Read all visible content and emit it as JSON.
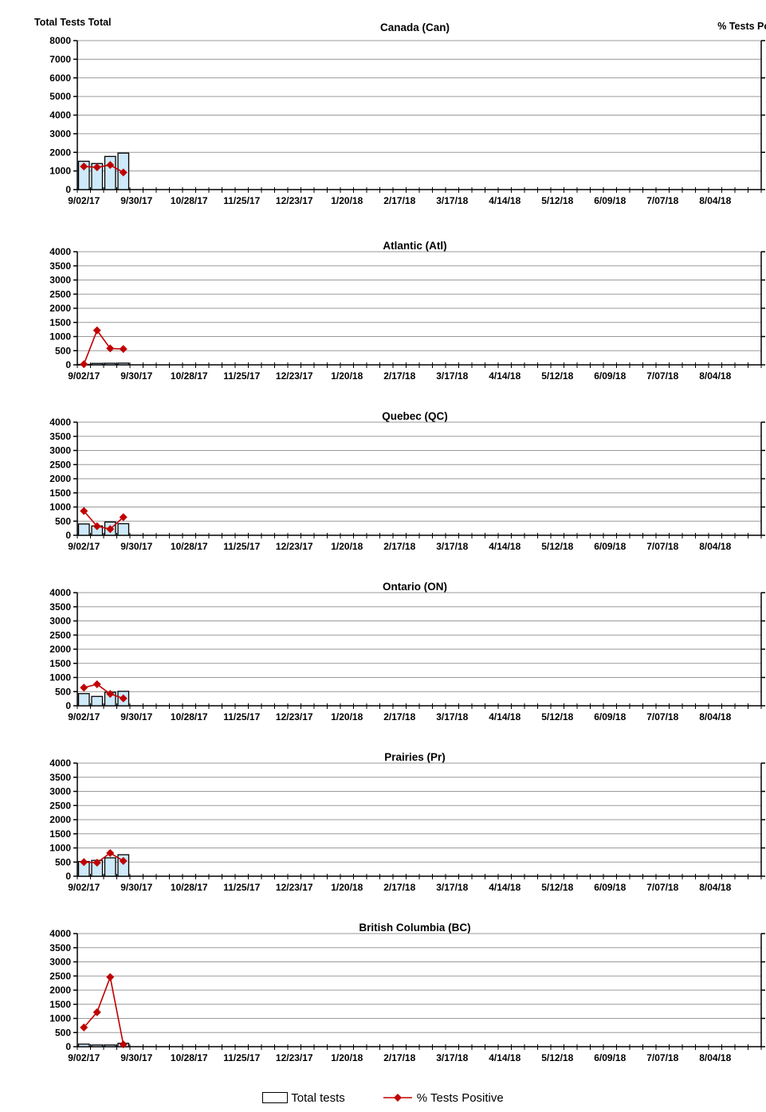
{
  "header": {
    "left_axis_label": "Total Tests Total",
    "right_axis_label": "% Tests Positive"
  },
  "legend": {
    "items": [
      {
        "label": "Total tests",
        "swatch": "bar-swatch",
        "color": "#CDE9FA"
      },
      {
        "label": "% Tests Positive",
        "swatch": "line-diamond-swatch",
        "color": "#C00000"
      }
    ]
  },
  "colors": {
    "bar_fill": "#CDE9FA",
    "bar_border": "#000000",
    "line": "#C00000",
    "grid": "#9A9A9A",
    "axis": "#000000",
    "text": "#000000",
    "background": "#FFFFFF"
  },
  "x_axis": {
    "tick_labels": [
      "9/02/17",
      "9/30/17",
      "10/28/17",
      "11/25/17",
      "12/23/17",
      "1/20/18",
      "2/17/18",
      "3/17/18",
      "4/14/18",
      "5/12/18",
      "6/09/18",
      "7/07/18",
      "8/04/18"
    ],
    "weeks_total": 52,
    "label_interval_weeks": 4
  },
  "chart_data": [
    {
      "type": "bar",
      "title": "Canada (Can)",
      "left_axis": {
        "min": 0,
        "max": 8000,
        "tick_step": 1000
      },
      "right_axis": {
        "min": 0,
        "max": 20,
        "tick_step": 5
      },
      "x": [
        "9/02/17",
        "9/09/17",
        "9/16/17",
        "9/23/17"
      ],
      "series": [
        {
          "name": "Total tests",
          "type": "bar",
          "axis": "left",
          "values": [
            1520,
            1400,
            1780,
            1960
          ]
        },
        {
          "name": "% Tests Positive",
          "type": "line",
          "axis": "right",
          "values": [
            3.1,
            3.0,
            3.3,
            2.3
          ]
        }
      ]
    },
    {
      "type": "bar",
      "title": "Atlantic (Atl)",
      "left_axis": {
        "min": 0,
        "max": 4000,
        "tick_step": 500
      },
      "right_axis": {
        "min": 0,
        "max": 20,
        "tick_step": 5
      },
      "x": [
        "9/02/17",
        "9/09/17",
        "9/16/17",
        "9/23/17"
      ],
      "series": [
        {
          "name": "Total tests",
          "type": "bar",
          "axis": "left",
          "values": [
            15,
            50,
            55,
            60
          ]
        },
        {
          "name": "% Tests Positive",
          "type": "line",
          "axis": "right",
          "values": [
            0.1,
            6.1,
            2.9,
            2.8
          ]
        }
      ]
    },
    {
      "type": "bar",
      "title": "Quebec (QC)",
      "left_axis": {
        "min": 0,
        "max": 4000,
        "tick_step": 500
      },
      "right_axis": {
        "min": 0,
        "max": 20,
        "tick_step": 5
      },
      "x": [
        "9/02/17",
        "9/09/17",
        "9/16/17",
        "9/23/17"
      ],
      "series": [
        {
          "name": "Total tests",
          "type": "bar",
          "axis": "left",
          "values": [
            400,
            330,
            470,
            410
          ]
        },
        {
          "name": "% Tests Positive",
          "type": "line",
          "axis": "right",
          "values": [
            4.3,
            1.6,
            1.1,
            3.2
          ]
        }
      ]
    },
    {
      "type": "bar",
      "title": "Ontario (ON)",
      "left_axis": {
        "min": 0,
        "max": 4000,
        "tick_step": 500
      },
      "right_axis": {
        "min": 0,
        "max": 20,
        "tick_step": 5
      },
      "x": [
        "9/02/17",
        "9/09/17",
        "9/16/17",
        "9/23/17"
      ],
      "series": [
        {
          "name": "Total tests",
          "type": "bar",
          "axis": "left",
          "values": [
            430,
            330,
            480,
            510
          ]
        },
        {
          "name": "% Tests Positive",
          "type": "line",
          "axis": "right",
          "values": [
            3.2,
            3.8,
            2.1,
            1.3
          ]
        }
      ]
    },
    {
      "type": "bar",
      "title": "Prairies (Pr)",
      "left_axis": {
        "min": 0,
        "max": 4000,
        "tick_step": 500
      },
      "right_axis": {
        "min": 0,
        "max": 20,
        "tick_step": 5
      },
      "x": [
        "9/02/17",
        "9/09/17",
        "9/16/17",
        "9/23/17"
      ],
      "series": [
        {
          "name": "Total tests",
          "type": "bar",
          "axis": "left",
          "values": [
            520,
            560,
            650,
            760
          ]
        },
        {
          "name": "% Tests Positive",
          "type": "line",
          "axis": "right",
          "values": [
            2.5,
            2.4,
            4.1,
            2.7
          ]
        }
      ]
    },
    {
      "type": "bar",
      "title": "British Columbia (BC)",
      "left_axis": {
        "min": 0,
        "max": 4000,
        "tick_step": 500
      },
      "right_axis": {
        "min": 0,
        "max": 20,
        "tick_step": 5
      },
      "x": [
        "9/02/17",
        "9/09/17",
        "9/16/17",
        "9/23/17"
      ],
      "series": [
        {
          "name": "Total tests",
          "type": "bar",
          "axis": "left",
          "values": [
            90,
            60,
            60,
            120
          ]
        },
        {
          "name": "% Tests Positive",
          "type": "line",
          "axis": "right",
          "values": [
            3.4,
            6.1,
            12.3,
            0.4
          ]
        }
      ]
    }
  ]
}
